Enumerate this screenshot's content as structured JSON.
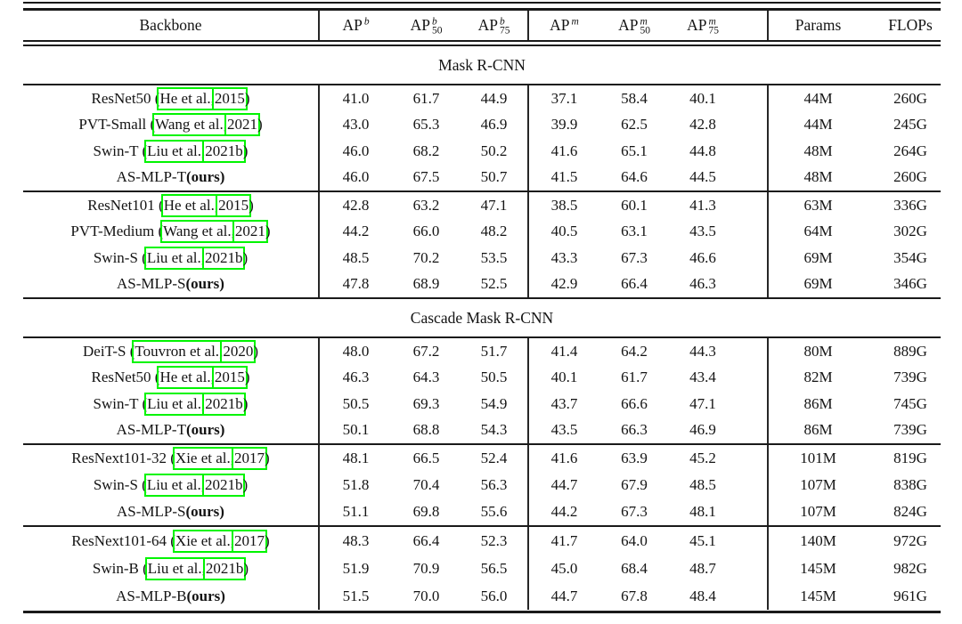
{
  "colors": {
    "citation_box": "#00f400",
    "text": "#141414",
    "rule": "#1a1a1a"
  },
  "table": {
    "header": {
      "columns": [
        {
          "base": "Backbone",
          "sup": "",
          "sub": ""
        },
        {
          "base": "AP",
          "sup": "b",
          "sub": ""
        },
        {
          "base": "AP",
          "sup": "b",
          "sub": "50"
        },
        {
          "base": "AP",
          "sup": "b",
          "sub": "75"
        },
        {
          "base": "AP",
          "sup": "m",
          "sub": ""
        },
        {
          "base": "AP",
          "sup": "m",
          "sub": "50"
        },
        {
          "base": "AP",
          "sup": "m",
          "sub": "75"
        },
        {
          "base": "Params",
          "sup": "",
          "sub": ""
        },
        {
          "base": "FLOPs",
          "sup": "",
          "sub": ""
        }
      ]
    },
    "sections": [
      {
        "title": "Mask R-CNN",
        "blocks": [
          {
            "rows": [
              {
                "backbone": {
                  "pre": "ResNet50 (",
                  "cite_author": "He et al.",
                  "mid": ", ",
                  "cite_year": "2015",
                  "post": ")"
                },
                "values": [
                  "41.0",
                  "61.7",
                  "44.9",
                  "37.1",
                  "58.4",
                  "40.1",
                  "44M",
                  "260G"
                ]
              },
              {
                "backbone": {
                  "pre": "PVT-Small (",
                  "cite_author": "Wang et al.",
                  "mid": ", ",
                  "cite_year": "2021",
                  "post": ")"
                },
                "values": [
                  "43.0",
                  "65.3",
                  "46.9",
                  "39.9",
                  "62.5",
                  "42.8",
                  "44M",
                  "245G"
                ]
              },
              {
                "backbone": {
                  "pre": "Swin-T (",
                  "cite_author": "Liu et al.",
                  "mid": ", ",
                  "cite_year": "2021b",
                  "post": ")"
                },
                "values": [
                  "46.0",
                  "68.2",
                  "50.2",
                  "41.6",
                  "65.1",
                  "44.8",
                  "48M",
                  "264G"
                ]
              },
              {
                "backbone": {
                  "pre": "AS-MLP-T ",
                  "bold": "(ours)"
                },
                "values": [
                  "46.0",
                  "67.5",
                  "50.7",
                  "41.5",
                  "64.6",
                  "44.5",
                  "48M",
                  "260G"
                ]
              }
            ]
          },
          {
            "rows": [
              {
                "backbone": {
                  "pre": "ResNet101 (",
                  "cite_author": "He et al.",
                  "mid": ", ",
                  "cite_year": "2015",
                  "post": ")"
                },
                "values": [
                  "42.8",
                  "63.2",
                  "47.1",
                  "38.5",
                  "60.1",
                  "41.3",
                  "63M",
                  "336G"
                ]
              },
              {
                "backbone": {
                  "pre": "PVT-Medium (",
                  "cite_author": "Wang et al.",
                  "mid": ", ",
                  "cite_year": "2021",
                  "post": ")"
                },
                "values": [
                  "44.2",
                  "66.0",
                  "48.2",
                  "40.5",
                  "63.1",
                  "43.5",
                  "64M",
                  "302G"
                ]
              },
              {
                "backbone": {
                  "pre": "Swin-S (",
                  "cite_author": "Liu et al.",
                  "mid": ", ",
                  "cite_year": "2021b",
                  "post": ")"
                },
                "values": [
                  "48.5",
                  "70.2",
                  "53.5",
                  "43.3",
                  "67.3",
                  "46.6",
                  "69M",
                  "354G"
                ]
              },
              {
                "backbone": {
                  "pre": "AS-MLP-S ",
                  "bold": "(ours)"
                },
                "values": [
                  "47.8",
                  "68.9",
                  "52.5",
                  "42.9",
                  "66.4",
                  "46.3",
                  "69M",
                  "346G"
                ]
              }
            ]
          }
        ]
      },
      {
        "title": "Cascade Mask R-CNN",
        "blocks": [
          {
            "rows": [
              {
                "backbone": {
                  "pre": "DeiT-S (",
                  "cite_author": "Touvron et al.",
                  "mid": ", ",
                  "cite_year": "2020",
                  "post": ")"
                },
                "values": [
                  "48.0",
                  "67.2",
                  "51.7",
                  "41.4",
                  "64.2",
                  "44.3",
                  "80M",
                  "889G"
                ]
              },
              {
                "backbone": {
                  "pre": "ResNet50 (",
                  "cite_author": "He et al.",
                  "mid": ", ",
                  "cite_year": "2015",
                  "post": ")"
                },
                "values": [
                  "46.3",
                  "64.3",
                  "50.5",
                  "40.1",
                  "61.7",
                  "43.4",
                  "82M",
                  "739G"
                ]
              },
              {
                "backbone": {
                  "pre": "Swin-T (",
                  "cite_author": "Liu et al.",
                  "mid": ", ",
                  "cite_year": "2021b",
                  "post": ")"
                },
                "values": [
                  "50.5",
                  "69.3",
                  "54.9",
                  "43.7",
                  "66.6",
                  "47.1",
                  "86M",
                  "745G"
                ]
              },
              {
                "backbone": {
                  "pre": "AS-MLP-T ",
                  "bold": "(ours)"
                },
                "values": [
                  "50.1",
                  "68.8",
                  "54.3",
                  "43.5",
                  "66.3",
                  "46.9",
                  "86M",
                  "739G"
                ]
              }
            ]
          },
          {
            "rows": [
              {
                "backbone": {
                  "pre": "ResNext101-32 (",
                  "cite_author": "Xie et al.",
                  "mid": ", ",
                  "cite_year": "2017",
                  "post": ")"
                },
                "values": [
                  "48.1",
                  "66.5",
                  "52.4",
                  "41.6",
                  "63.9",
                  "45.2",
                  "101M",
                  "819G"
                ]
              },
              {
                "backbone": {
                  "pre": "Swin-S (",
                  "cite_author": "Liu et al.",
                  "mid": ", ",
                  "cite_year": "2021b",
                  "post": ")"
                },
                "values": [
                  "51.8",
                  "70.4",
                  "56.3",
                  "44.7",
                  "67.9",
                  "48.5",
                  "107M",
                  "838G"
                ]
              },
              {
                "backbone": {
                  "pre": "AS-MLP-S ",
                  "bold": "(ours)"
                },
                "values": [
                  "51.1",
                  "69.8",
                  "55.6",
                  "44.2",
                  "67.3",
                  "48.1",
                  "107M",
                  "824G"
                ]
              }
            ]
          },
          {
            "rows": [
              {
                "backbone": {
                  "pre": "ResNext101-64 (",
                  "cite_author": "Xie et al.",
                  "mid": ", ",
                  "cite_year": "2017",
                  "post": ")"
                },
                "values": [
                  "48.3",
                  "66.4",
                  "52.3",
                  "41.7",
                  "64.0",
                  "45.1",
                  "140M",
                  "972G"
                ]
              },
              {
                "backbone": {
                  "pre": "Swin-B (",
                  "cite_author": "Liu et al.",
                  "mid": ", ",
                  "cite_year": "2021b",
                  "post": ")"
                },
                "values": [
                  "51.9",
                  "70.9",
                  "56.5",
                  "45.0",
                  "68.4",
                  "48.7",
                  "145M",
                  "982G"
                ]
              },
              {
                "backbone": {
                  "pre": "AS-MLP-B ",
                  "bold": "(ours)"
                },
                "values": [
                  "51.5",
                  "70.0",
                  "56.0",
                  "44.7",
                  "67.8",
                  "48.4",
                  "145M",
                  "961G"
                ]
              }
            ]
          }
        ]
      }
    ]
  }
}
